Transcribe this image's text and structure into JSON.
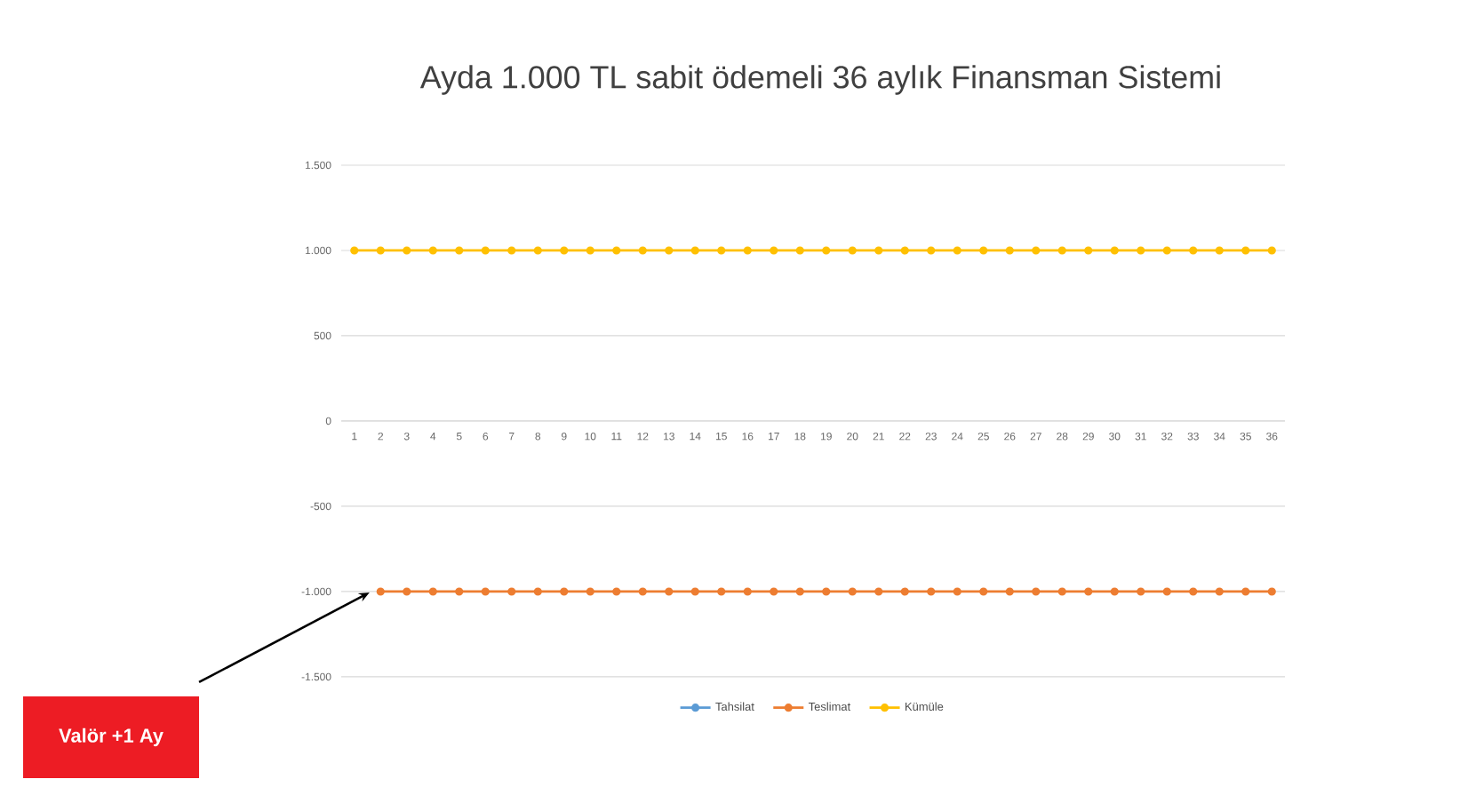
{
  "chart_data": {
    "type": "line",
    "title": "Ayda 1.000 TL sabit ödemeli 36 aylık Finansman Sistemi",
    "categories": [
      "1",
      "2",
      "3",
      "4",
      "5",
      "6",
      "7",
      "8",
      "9",
      "10",
      "11",
      "12",
      "13",
      "14",
      "15",
      "16",
      "17",
      "18",
      "19",
      "20",
      "21",
      "22",
      "23",
      "24",
      "25",
      "26",
      "27",
      "28",
      "29",
      "30",
      "31",
      "32",
      "33",
      "34",
      "35",
      "36"
    ],
    "series": [
      {
        "name": "Tahsilat",
        "color": "#5b9bd5",
        "values": [
          null,
          null,
          null,
          null,
          null,
          null,
          null,
          null,
          null,
          null,
          null,
          null,
          null,
          null,
          null,
          null,
          null,
          null,
          null,
          null,
          null,
          null,
          null,
          null,
          null,
          null,
          null,
          null,
          null,
          null,
          null,
          null,
          null,
          null,
          null,
          null
        ]
      },
      {
        "name": "Teslimat",
        "color": "#ed7d31",
        "values": [
          null,
          -1000,
          -1000,
          -1000,
          -1000,
          -1000,
          -1000,
          -1000,
          -1000,
          -1000,
          -1000,
          -1000,
          -1000,
          -1000,
          -1000,
          -1000,
          -1000,
          -1000,
          -1000,
          -1000,
          -1000,
          -1000,
          -1000,
          -1000,
          -1000,
          -1000,
          -1000,
          -1000,
          -1000,
          -1000,
          -1000,
          -1000,
          -1000,
          -1000,
          -1000,
          -1000
        ]
      },
      {
        "name": "Kümüle",
        "color": "#ffc000",
        "values": [
          1000,
          1000,
          1000,
          1000,
          1000,
          1000,
          1000,
          1000,
          1000,
          1000,
          1000,
          1000,
          1000,
          1000,
          1000,
          1000,
          1000,
          1000,
          1000,
          1000,
          1000,
          1000,
          1000,
          1000,
          1000,
          1000,
          1000,
          1000,
          1000,
          1000,
          1000,
          1000,
          1000,
          1000,
          1000,
          1000
        ]
      }
    ],
    "ylim": [
      -1500,
      1500
    ],
    "yticks": [
      {
        "value": -1500,
        "label": "-1.500"
      },
      {
        "value": -1000,
        "label": "-1.000"
      },
      -500,
      0,
      500,
      {
        "value": 1000,
        "label": "1.000"
      },
      {
        "value": 1500,
        "label": "1.500"
      }
    ],
    "grid": "y",
    "legend": "bottom",
    "marker": "circle",
    "line_style": "solid",
    "annotations": [
      "Valör +1 Ay"
    ]
  }
}
